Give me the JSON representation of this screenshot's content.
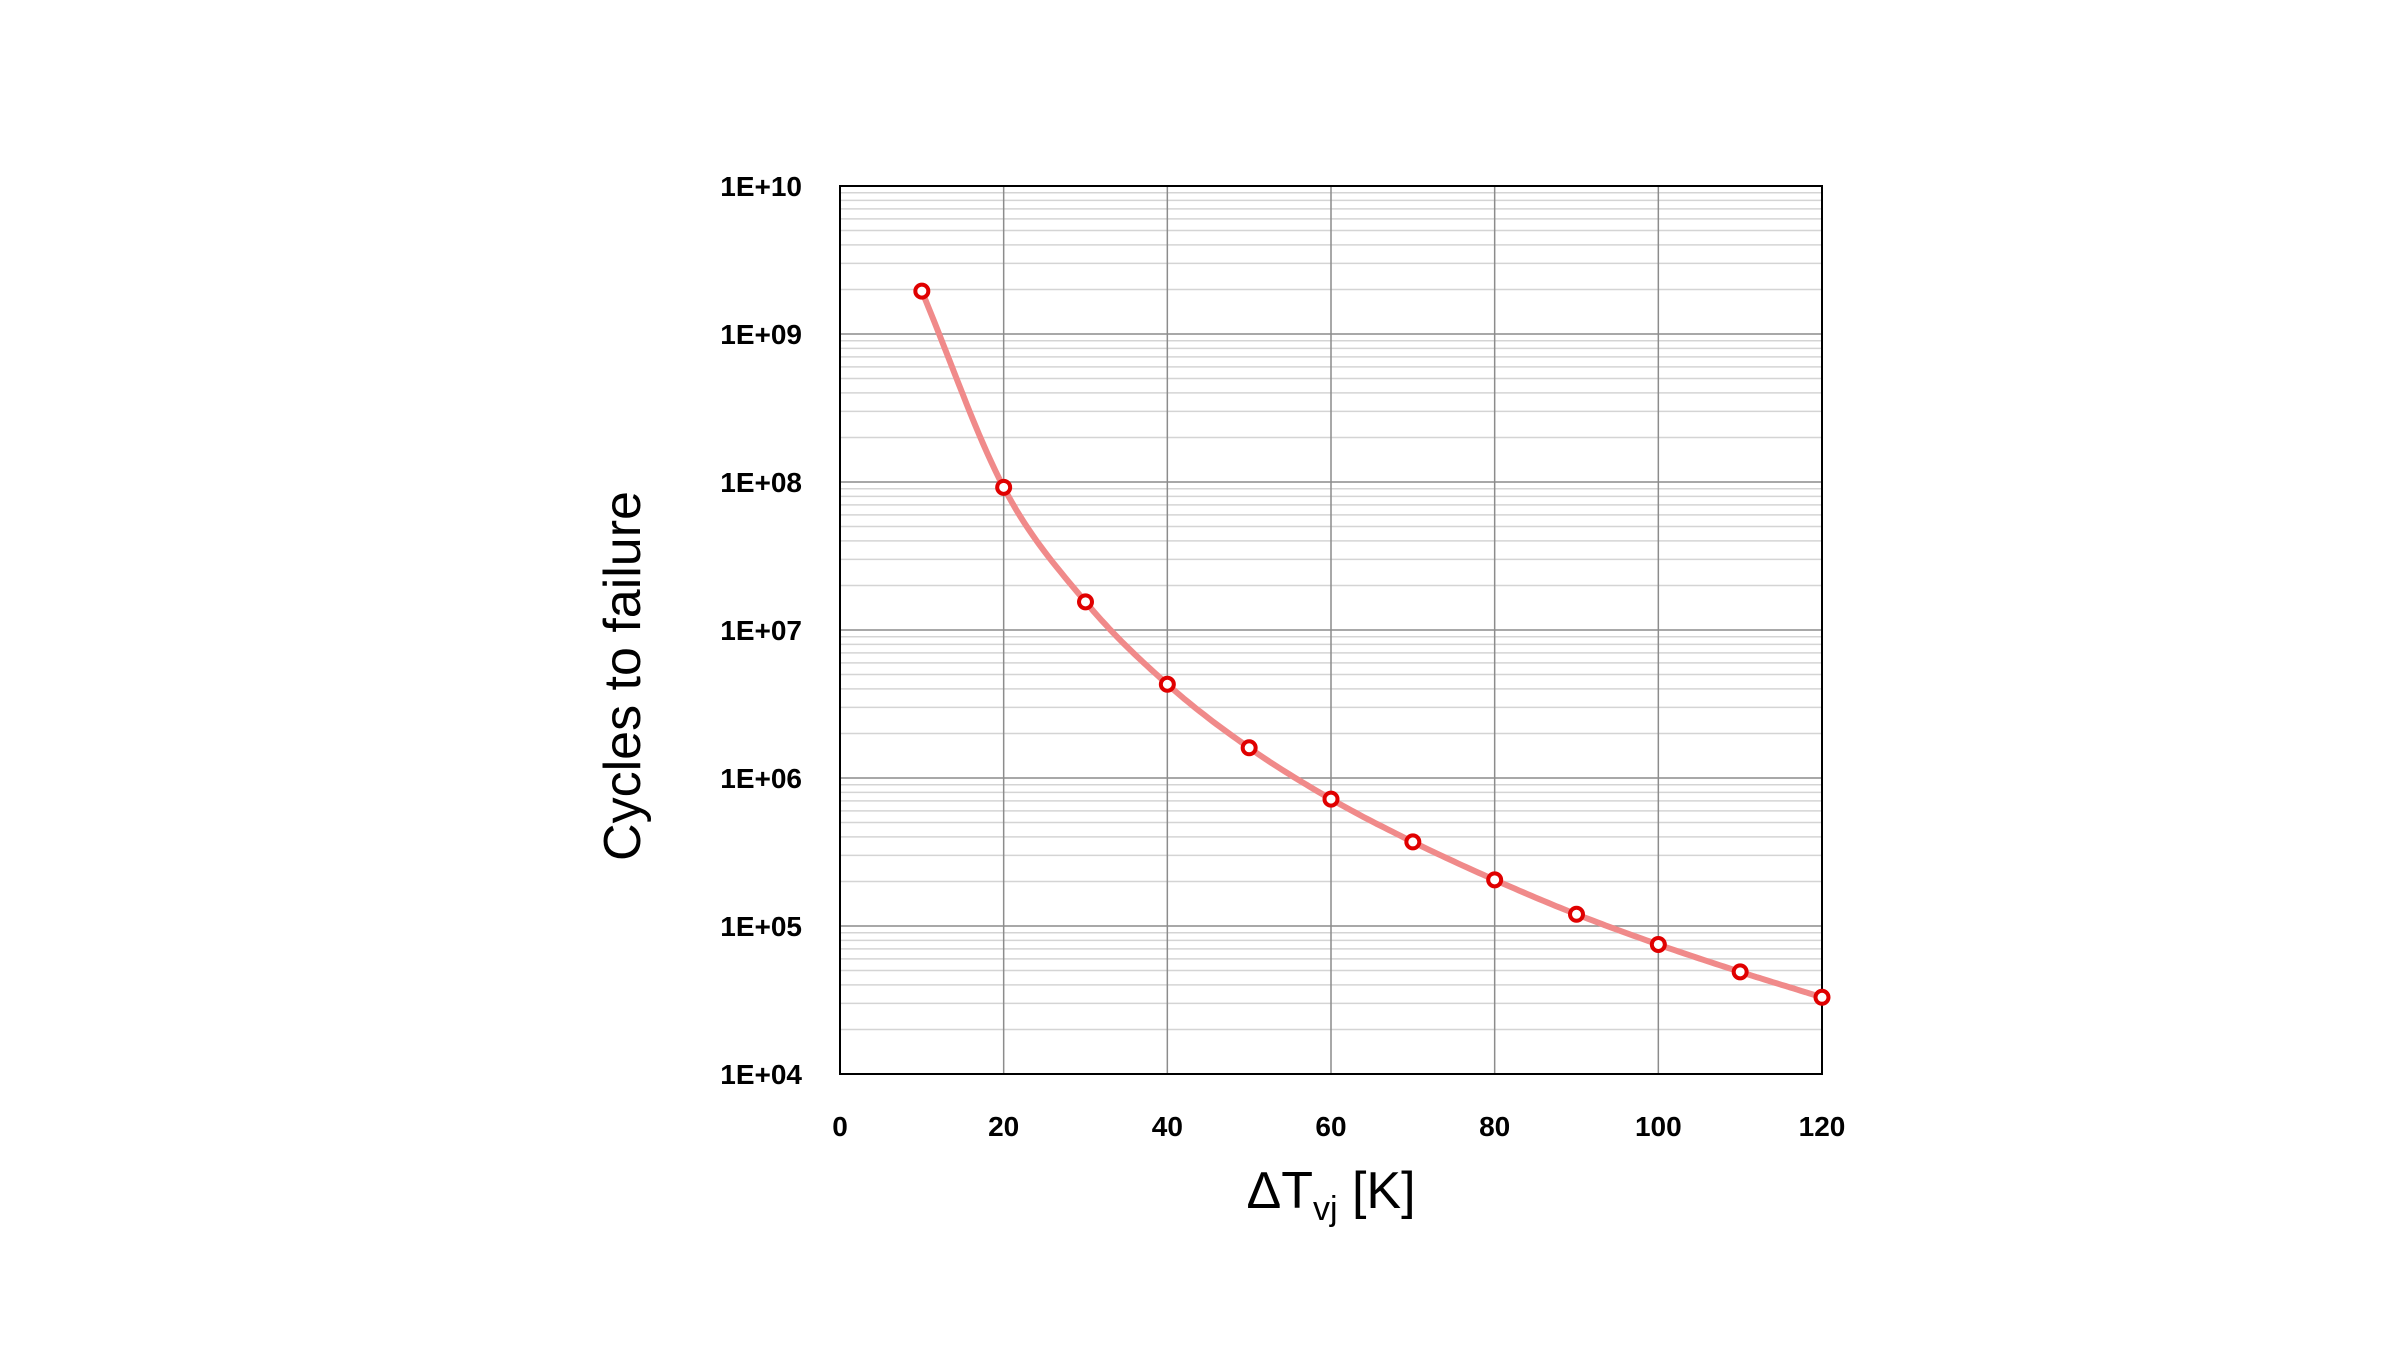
{
  "chart_data": {
    "type": "line",
    "title": "",
    "xlabel": "ΔTvj [K]",
    "xlabel_parts": {
      "symbol": "ΔT",
      "subscript": "vj",
      "unit": " [K]"
    },
    "ylabel": "Cycles to failure",
    "xlim": [
      0,
      120
    ],
    "ylim": [
      10000,
      10000000000
    ],
    "yscale": "log",
    "grid": true,
    "x_ticks": [
      "0",
      "20",
      "40",
      "60",
      "80",
      "100",
      "120"
    ],
    "x_tick_values": [
      0,
      20,
      40,
      60,
      80,
      100,
      120
    ],
    "y_ticks": [
      "1E+04",
      "1E+05",
      "1E+06",
      "1E+07",
      "1E+08",
      "1E+09",
      "1E+10"
    ],
    "y_tick_values": [
      10000,
      100000,
      1000000,
      10000000,
      100000000,
      1000000000,
      10000000000
    ],
    "series": [
      {
        "line_color": "#f08a8a",
        "marker_color": "#e00000",
        "x": [
          10,
          20,
          30,
          40,
          50,
          60,
          70,
          80,
          90,
          100,
          110,
          120
        ],
        "y": [
          1950000000,
          92000000,
          15500000,
          4300000,
          1600000,
          720000,
          370000,
          205000,
          120000,
          75000,
          49000,
          33000
        ]
      }
    ]
  }
}
